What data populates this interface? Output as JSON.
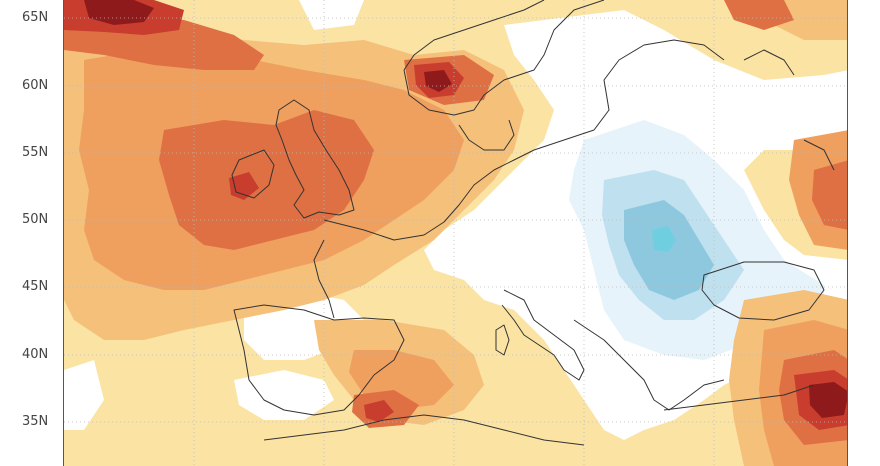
{
  "axis": {
    "lat_labels": [
      "65N",
      "60N",
      "55N",
      "50N",
      "45N",
      "40N",
      "35N"
    ]
  },
  "colors": {
    "light_yellow": "#fbe3a4",
    "light_orange": "#f5c07a",
    "orange": "#ef9f5e",
    "dark_orange": "#df7044",
    "red": "#c83d2e",
    "dark_red": "#8e1a1c",
    "pale_blue": "#e6f3fa",
    "light_blue": "#bfe0ef",
    "blue": "#8ec8df",
    "cyan": "#6fcfe0",
    "coast": "#333333",
    "grid": "#bbbbbb"
  }
}
